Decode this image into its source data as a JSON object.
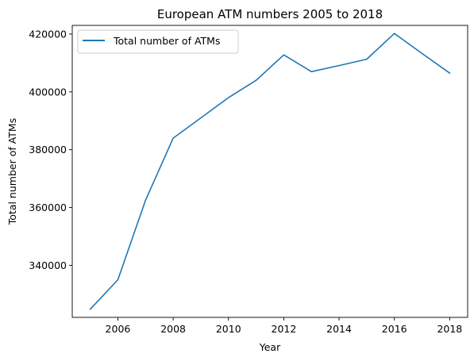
{
  "chart_data": {
    "type": "line",
    "title": "European ATM numbers 2005 to 2018",
    "xlabel": "Year",
    "ylabel": "Total number of ATMs",
    "x": [
      2005,
      2006,
      2007,
      2008,
      2009,
      2010,
      2011,
      2012,
      2013,
      2014,
      2015,
      2016,
      2017,
      2018
    ],
    "series": [
      {
        "name": "Total number of ATMs",
        "color": "#1f77b4",
        "values": [
          324800,
          335000,
          362500,
          384000,
          391000,
          398000,
          404000,
          412800,
          407000,
          409100,
          411300,
          420200,
          413300,
          406500
        ]
      }
    ],
    "xlim": [
      2004.35,
      2018.65
    ],
    "ylim": [
      322000,
      423000
    ],
    "xticks": [
      2006,
      2008,
      2010,
      2012,
      2014,
      2016,
      2018
    ],
    "yticks": [
      340000,
      360000,
      380000,
      400000,
      420000
    ],
    "grid": false,
    "legend_position": "top-left"
  }
}
